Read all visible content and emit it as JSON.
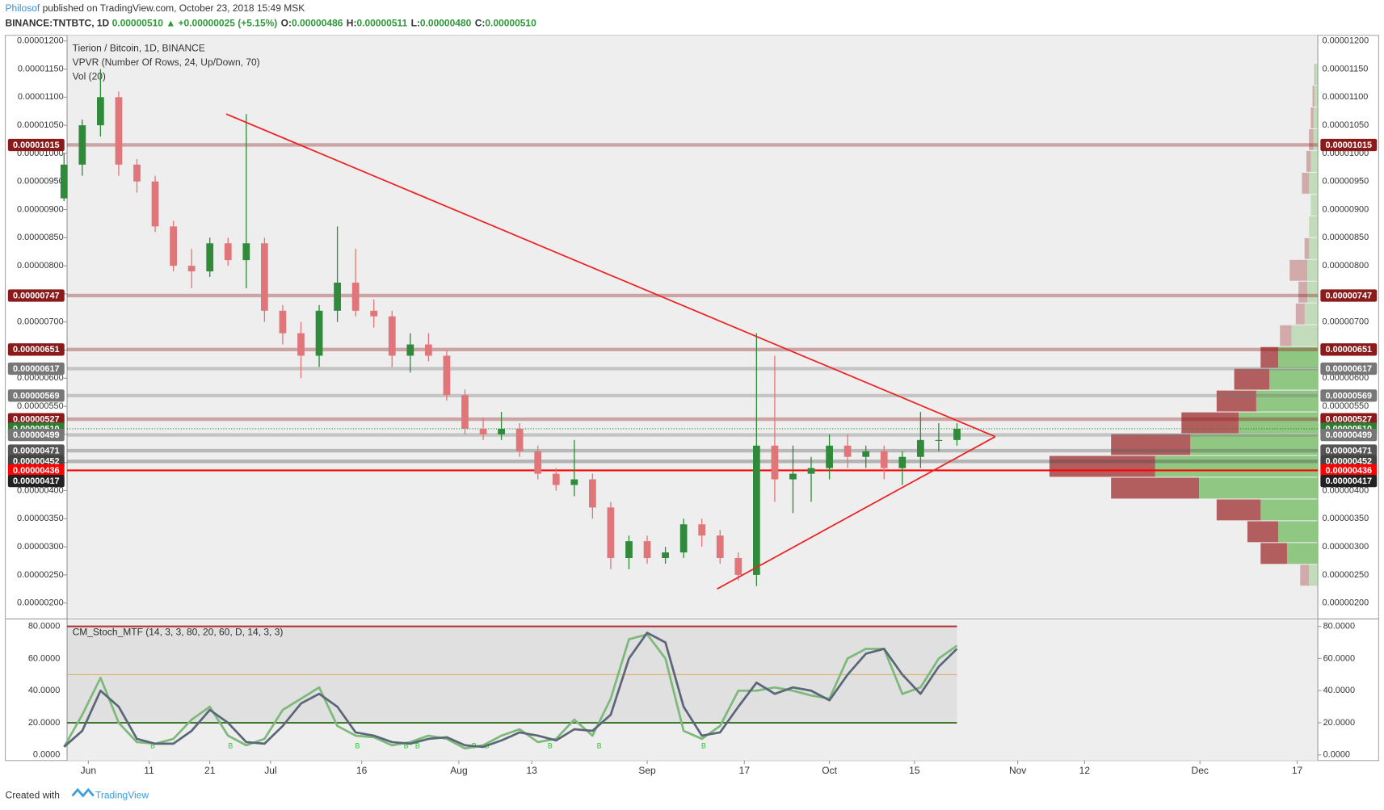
{
  "header": {
    "author": "Philosof",
    "published": "published on TradingView.com, October 23, 2018 15:49 MSK",
    "symbol": "BINANCE:TNTBTC, 1D",
    "price": "0.00000510",
    "change": "▲ +0.00000025 (+5.15%)",
    "ohlc": [
      {
        "label": "O:",
        "value": "0.00000486"
      },
      {
        "label": "H:",
        "value": "0.00000511"
      },
      {
        "label": "L:",
        "value": "0.00000480"
      },
      {
        "label": "C:",
        "value": "0.00000510"
      }
    ]
  },
  "footer": {
    "created": "Created with",
    "brand": "TradingView"
  },
  "chart_data": [
    {
      "type": "candlestick",
      "title": "Tierion / Bitcoin, 1D, BINANCE",
      "indicators": [
        "VPVR (Number Of Rows, 24, Up/Down, 70)",
        "Vol (20)"
      ],
      "up_color": "#2f8a3a",
      "down_color": "#e0767a",
      "x": [
        0,
        3,
        6,
        9,
        12,
        15,
        18,
        21,
        24,
        27,
        30,
        33,
        36,
        39,
        42,
        45,
        48,
        51,
        54,
        57,
        60,
        63,
        66,
        69,
        72,
        75,
        78,
        81,
        84,
        87,
        90,
        93,
        96,
        99,
        102,
        105,
        108,
        111,
        114,
        117,
        120,
        123,
        126,
        129,
        132,
        135,
        138,
        141,
        144,
        147
      ],
      "candles": [
        [
          9.2e-06,
          1e-05,
          9.15e-06,
          9.8e-06
        ],
        [
          9.8e-06,
          1.06e-05,
          9.6e-06,
          1.05e-05
        ],
        [
          1.05e-05,
          1.15e-05,
          1.03e-05,
          1.1e-05
        ],
        [
          1.1e-05,
          1.11e-05,
          9.6e-06,
          9.8e-06
        ],
        [
          9.8e-06,
          9.9e-06,
          9.3e-06,
          9.5e-06
        ],
        [
          9.5e-06,
          9.6e-06,
          8.6e-06,
          8.7e-06
        ],
        [
          8.7e-06,
          8.8e-06,
          7.9e-06,
          8e-06
        ],
        [
          8e-06,
          8.3e-06,
          7.6e-06,
          7.9e-06
        ],
        [
          7.9e-06,
          8.5e-06,
          7.8e-06,
          8.4e-06
        ],
        [
          8.4e-06,
          8.5e-06,
          8e-06,
          8.1e-06
        ],
        [
          8.1e-06,
          1.07e-05,
          7.6e-06,
          8.4e-06
        ],
        [
          8.4e-06,
          8.5e-06,
          7e-06,
          7.2e-06
        ],
        [
          7.2e-06,
          7.3e-06,
          6.6e-06,
          6.8e-06
        ],
        [
          6.8e-06,
          7e-06,
          6e-06,
          6.4e-06
        ],
        [
          6.4e-06,
          7.3e-06,
          6.2e-06,
          7.2e-06
        ],
        [
          7.2e-06,
          8.7e-06,
          7e-06,
          7.7e-06
        ],
        [
          7.7e-06,
          8.3e-06,
          7.1e-06,
          7.2e-06
        ],
        [
          7.2e-06,
          7.4e-06,
          6.9e-06,
          7.1e-06
        ],
        [
          7.1e-06,
          7.2e-06,
          6.2e-06,
          6.4e-06
        ],
        [
          6.4e-06,
          6.8e-06,
          6.1e-06,
          6.6e-06
        ],
        [
          6.6e-06,
          6.8e-06,
          6.3e-06,
          6.4e-06
        ],
        [
          6.4e-06,
          6.5e-06,
          5.6e-06,
          5.7e-06
        ],
        [
          5.7e-06,
          5.8e-06,
          5e-06,
          5.1e-06
        ],
        [
          5.1e-06,
          5.3e-06,
          4.9e-06,
          5e-06
        ],
        [
          5e-06,
          5.4e-06,
          4.9e-06,
          5.1e-06
        ],
        [
          5.1e-06,
          5.2e-06,
          4.6e-06,
          4.7e-06
        ],
        [
          4.7e-06,
          4.8e-06,
          4.2e-06,
          4.3e-06
        ],
        [
          4.3e-06,
          4.4e-06,
          4e-06,
          4.1e-06
        ],
        [
          4.1e-06,
          4.9e-06,
          3.9e-06,
          4.2e-06
        ],
        [
          4.2e-06,
          4.3e-06,
          3.5e-06,
          3.7e-06
        ],
        [
          3.7e-06,
          3.8e-06,
          2.6e-06,
          2.8e-06
        ],
        [
          2.8e-06,
          3.2e-06,
          2.6e-06,
          3.1e-06
        ],
        [
          3.1e-06,
          3.2e-06,
          2.7e-06,
          2.8e-06
        ],
        [
          2.8e-06,
          3e-06,
          2.7e-06,
          2.9e-06
        ],
        [
          2.9e-06,
          3.5e-06,
          2.8e-06,
          3.4e-06
        ],
        [
          3.4e-06,
          3.5e-06,
          3e-06,
          3.2e-06
        ],
        [
          3.2e-06,
          3.3e-06,
          2.7e-06,
          2.8e-06
        ],
        [
          2.8e-06,
          2.9e-06,
          2.4e-06,
          2.5e-06
        ],
        [
          2.5e-06,
          6.8e-06,
          2.3e-06,
          4.8e-06
        ],
        [
          4.8e-06,
          6.4e-06,
          3.8e-06,
          4.2e-06
        ],
        [
          4.2e-06,
          4.8e-06,
          3.6e-06,
          4.3e-06
        ],
        [
          4.3e-06,
          4.6e-06,
          3.8e-06,
          4.4e-06
        ],
        [
          4.4e-06,
          5e-06,
          4.2e-06,
          4.8e-06
        ],
        [
          4.8e-06,
          5e-06,
          4.4e-06,
          4.6e-06
        ],
        [
          4.6e-06,
          4.8e-06,
          4.4e-06,
          4.7e-06
        ],
        [
          4.7e-06,
          4.8e-06,
          4.2e-06,
          4.4e-06
        ],
        [
          4.4e-06,
          4.7e-06,
          4.1e-06,
          4.6e-06
        ],
        [
          4.6e-06,
          5.4e-06,
          4.4e-06,
          4.9e-06
        ],
        [
          4.9e-06,
          5.2e-06,
          4.7e-06,
          4.9e-06
        ],
        [
          4.9e-06,
          5.2e-06,
          4.8e-06,
          5.1e-06
        ]
      ],
      "xlim": [
        0.5,
        206.4
      ],
      "xticks": [
        {
          "value": 4,
          "label": "Jun"
        },
        {
          "value": 14,
          "label": "11"
        },
        {
          "value": 24,
          "label": "21"
        },
        {
          "value": 34,
          "label": "Jul"
        },
        {
          "value": 49,
          "label": "16"
        },
        {
          "value": 65,
          "label": "Aug"
        },
        {
          "value": 77,
          "label": "13"
        },
        {
          "value": 96,
          "label": "Sep"
        },
        {
          "value": 112,
          "label": "17"
        },
        {
          "value": 126,
          "label": "Oct"
        },
        {
          "value": 140,
          "label": "15"
        },
        {
          "value": 157,
          "label": "Nov"
        },
        {
          "value": 168,
          "label": "12"
        },
        {
          "value": 187,
          "label": "Dec"
        },
        {
          "value": 203,
          "label": "17"
        }
      ],
      "ylim": [
        1.74e-06,
        1.21e-05
      ],
      "yticks": [
        {
          "value": 2e-06,
          "label": "0.00000200"
        },
        {
          "value": 2.5e-06,
          "label": "0.00000250"
        },
        {
          "value": 3e-06,
          "label": "0.00000300"
        },
        {
          "value": 3.5e-06,
          "label": "0.00000350"
        },
        {
          "value": 4e-06,
          "label": "0.00000400"
        },
        {
          "value": 4.5e-06,
          "label": "0.00000450"
        },
        {
          "value": 5e-06,
          "label": "0.00000500"
        },
        {
          "value": 5.5e-06,
          "label": "0.00000550"
        },
        {
          "value": 6e-06,
          "label": "0.00000600"
        },
        {
          "value": 6.5e-06,
          "label": "0.00000650"
        },
        {
          "value": 7e-06,
          "label": "0.00000700"
        },
        {
          "value": 7.5e-06,
          "label": "0.00000750"
        },
        {
          "value": 8e-06,
          "label": "0.00000800"
        },
        {
          "value": 8.5e-06,
          "label": "0.00000850"
        },
        {
          "value": 9e-06,
          "label": "0.00000900"
        },
        {
          "value": 9.5e-06,
          "label": "0.00000950"
        },
        {
          "value": 1e-05,
          "label": "0.00001000"
        },
        {
          "value": 1.05e-05,
          "label": "0.00001050"
        },
        {
          "value": 1.1e-05,
          "label": "0.00001100"
        },
        {
          "value": 1.15e-05,
          "label": "0.00001150"
        },
        {
          "value": 1.2e-05,
          "label": "0.00001200"
        }
      ],
      "levels": [
        {
          "value": 1.015e-05,
          "label": "0.00001015",
          "color": "#8b1a1a",
          "line": "band"
        },
        {
          "value": 7.47e-06,
          "label": "0.00000747",
          "color": "#8b1a1a",
          "line": "band"
        },
        {
          "value": 6.51e-06,
          "label": "0.00000651",
          "color": "#8b1a1a",
          "line": "band"
        },
        {
          "value": 6.17e-06,
          "label": "0.00000617",
          "color": "#777777",
          "line": "band"
        },
        {
          "value": 5.69e-06,
          "label": "0.00000569",
          "color": "#777777",
          "line": "band"
        },
        {
          "value": 5.27e-06,
          "label": "0.00000527",
          "color": "#8b1a1a",
          "line": "band"
        },
        {
          "value": 5.1e-06,
          "label": "0.00000510",
          "color": "#2e7d32",
          "line": "dotted"
        },
        {
          "value": 4.99e-06,
          "label": "0.00000499",
          "color": "#777777",
          "line": "band"
        },
        {
          "value": 4.71e-06,
          "label": "0.00000471",
          "color": "#555555",
          "line": "band"
        },
        {
          "value": 4.52e-06,
          "label": "0.00000452",
          "color": "#444444",
          "line": "band"
        },
        {
          "value": 4.36e-06,
          "label": "0.00000436",
          "color": "#ff0000",
          "line": "solid"
        },
        {
          "value": 4.17e-06,
          "label": "0.00000417",
          "color": "#222222",
          "line": "none"
        }
      ],
      "trendlines": [
        {
          "color": "#ee2222",
          "x": [
            26.7,
            153.3
          ],
          "y": [
            1.07e-05,
            4.96e-06
          ]
        },
        {
          "color": "#ee2222",
          "x": [
            107.5,
            153.3
          ],
          "y": [
            2.25e-06,
            4.96e-06
          ]
        }
      ],
      "vpvr": {
        "price_range": [
          2.3e-06,
          1.16e-05
        ],
        "up_color": "#7fbf6f",
        "down_color": "#a84444",
        "up": [
          10,
          35,
          45,
          65,
          135,
          185,
          145,
          90,
          70,
          55,
          45,
          30,
          15,
          12,
          12,
          10,
          10,
          8,
          10,
          8,
          5,
          5,
          4,
          3
        ],
        "down": [
          10,
          30,
          35,
          50,
          100,
          120,
          90,
          65,
          45,
          40,
          20,
          13,
          10,
          10,
          20,
          5,
          0,
          0,
          8,
          5,
          5,
          3,
          2,
          1
        ]
      }
    },
    {
      "type": "line",
      "title": "CM_Stoch_MTF (14, 3, 3, 80, 20, 60, D, 14, 3, 3)",
      "x": [
        0,
        3,
        6,
        9,
        12,
        15,
        18,
        21,
        24,
        27,
        30,
        33,
        36,
        39,
        42,
        45,
        48,
        51,
        54,
        57,
        60,
        63,
        66,
        69,
        72,
        75,
        78,
        81,
        84,
        87,
        90,
        93,
        96,
        99,
        102,
        105,
        108,
        111,
        114,
        117,
        120,
        123,
        126,
        129,
        132,
        135,
        138,
        141,
        144,
        147
      ],
      "series": [
        {
          "color": "#7cb97a",
          "values": [
            5,
            25,
            48,
            20,
            8,
            7,
            10,
            22,
            30,
            12,
            6,
            10,
            28,
            35,
            42,
            18,
            12,
            11,
            6,
            8,
            12,
            10,
            4,
            6,
            12,
            16,
            8,
            10,
            22,
            12,
            35,
            72,
            75,
            60,
            15,
            10,
            18,
            40,
            40,
            42,
            40,
            37,
            35,
            60,
            66,
            66,
            38,
            42,
            60,
            68
          ]
        },
        {
          "color": "#5b6778",
          "values": [
            5,
            15,
            40,
            30,
            10,
            7,
            7,
            15,
            28,
            20,
            8,
            7,
            18,
            32,
            38,
            30,
            14,
            12,
            8,
            7,
            10,
            11,
            6,
            5,
            9,
            14,
            12,
            9,
            16,
            15,
            25,
            60,
            76,
            70,
            30,
            12,
            14,
            30,
            45,
            38,
            42,
            40,
            34,
            50,
            63,
            66,
            50,
            38,
            55,
            66
          ]
        }
      ],
      "levels": [
        {
          "value": 80,
          "color": "#b03030"
        },
        {
          "value": 50,
          "color": "#e0a040"
        },
        {
          "value": 20,
          "color": "#3a7a2a"
        }
      ],
      "signals": {
        "label": "B",
        "color": "#22cc22",
        "x": [
          14.6,
          27.4,
          48.3,
          56.3,
          58.2,
          67.5,
          69.6,
          80,
          88.1,
          105.3
        ]
      },
      "xlim": [
        0.5,
        206.4
      ],
      "ylim": [
        -3.5,
        83.8
      ],
      "yticks": [
        {
          "value": 0,
          "label": "0.0000"
        },
        {
          "value": 20,
          "label": "20.0000"
        },
        {
          "value": 40,
          "label": "40.0000"
        },
        {
          "value": 60,
          "label": "60.0000"
        },
        {
          "value": 80,
          "label": "80.0000"
        }
      ]
    }
  ]
}
